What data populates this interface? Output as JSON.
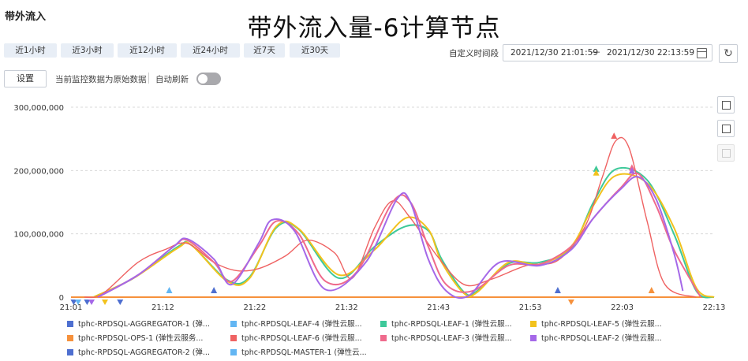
{
  "panel": {
    "title": "带外流入",
    "heading": "带外流入量-6计算节点"
  },
  "toolbar": {
    "ranges": [
      "近1小时",
      "近3小时",
      "近12小时",
      "近24小时",
      "近7天",
      "近30天"
    ],
    "custom_label": "自定义时间段",
    "date_start": "2021/12/30 21:01:59",
    "date_separator": "—",
    "date_end": "2021/12/30 22:13:59",
    "refresh_icon": "refresh-icon",
    "calendar_icon": "calendar-icon"
  },
  "controls": {
    "settings_label": "设置",
    "raw_note": "当前监控数据为原始数据",
    "auto_refresh_label": "自动刷新",
    "auto_refresh_on": false
  },
  "side_icons": [
    "zoom-select-icon",
    "zoom-reset-icon",
    "restore-icon"
  ],
  "chart_data": {
    "type": "line",
    "title": "带外流入量-6计算节点",
    "xlabel": "",
    "ylabel": "",
    "x_ticks": [
      "21:01",
      "21:12",
      "21:22",
      "21:32",
      "21:43",
      "21:53",
      "22:03",
      "22:13"
    ],
    "x_range": [
      0,
      72
    ],
    "y_ticks": [
      "0",
      "100,000,000",
      "200,000,000",
      "300,000,000"
    ],
    "ylim": [
      0,
      300000000
    ],
    "grid": true,
    "legend_position": "bottom",
    "colors": {
      "agg1": "#4e6fd0",
      "leaf4": "#63b6f3",
      "leaf1": "#3ec99a",
      "leaf5": "#f2c21d",
      "ops1": "#f6913c",
      "leaf6": "#ef6262",
      "leaf3": "#ef6a8c",
      "leaf2": "#a568e8",
      "agg2": "#4e6fd0",
      "master1": "#63b6f3"
    },
    "series": [
      {
        "key": "leaf4",
        "name": "tphc-RPDSQL-LEAF-4 (弹性云服...",
        "x": [
          0,
          72
        ],
        "y": [
          0,
          0
        ]
      },
      {
        "key": "master1",
        "name": "tphc-RPDSQL-MASTER-1 (弹性云...",
        "x": [
          0,
          72
        ],
        "y": [
          0,
          0
        ]
      },
      {
        "key": "agg1",
        "name": "tphc-RPDSQL-AGGREGATOR-1 (弹...",
        "x": [
          0,
          72
        ],
        "y": [
          0,
          0
        ]
      },
      {
        "key": "agg2",
        "name": "tphc-RPDSQL-AGGREGATOR-2 (弹...",
        "x": [
          0,
          72
        ],
        "y": [
          0,
          0
        ]
      },
      {
        "key": "ops1",
        "name": "tphc-RPDSQL-OPS-1 (弹性云服务...",
        "x": [
          0,
          72
        ],
        "y": [
          0,
          0
        ]
      },
      {
        "key": "leaf1",
        "name": "tphc-RPDSQL-LEAF-1 (弹性云服...",
        "x": [
          2.5,
          7,
          12,
          13.5,
          17.5,
          20,
          23,
          25.5,
          30,
          34,
          37.5,
          40,
          41.5,
          44,
          45.5,
          49,
          52.5,
          56,
          58.5,
          61,
          64.5,
          67.5,
          70,
          72
        ],
        "y": [
          0,
          30000000,
          80000000,
          82000000,
          27000000,
          32000000,
          110000000,
          107000000,
          30000000,
          80000000,
          112000000,
          105000000,
          60000000,
          8000000,
          10000000,
          53000000,
          55000000,
          77000000,
          150000000,
          202000000,
          185000000,
          100000000,
          10000000,
          0
        ]
      },
      {
        "key": "leaf5",
        "name": "tphc-RPDSQL-LEAF-5 (弹性云服...",
        "x": [
          2.5,
          7,
          12,
          13.5,
          17.5,
          20,
          23,
          25.5,
          30,
          34,
          37.5,
          40,
          41.5,
          44,
          45.5,
          49,
          52.5,
          56,
          58.5,
          61,
          64.5,
          67.5,
          70,
          72
        ],
        "y": [
          0,
          30000000,
          78000000,
          82000000,
          25000000,
          30000000,
          112000000,
          108000000,
          35000000,
          75000000,
          125000000,
          107000000,
          55000000,
          6000000,
          8000000,
          55000000,
          52000000,
          80000000,
          145000000,
          192000000,
          180000000,
          110000000,
          15000000,
          0
        ]
      },
      {
        "key": "leaf6",
        "name": "tphc-RPDSQL-LEAF-6 (弹性云服...",
        "x": [
          1.5,
          3.5,
          7.5,
          10.5,
          13,
          16,
          18.5,
          21,
          24,
          26.5,
          29.5,
          31.5,
          34,
          36,
          38,
          41,
          44,
          47,
          51,
          54.5,
          57.5,
          59.5,
          61,
          62.5,
          64.5,
          66.5,
          70
        ],
        "y": [
          0,
          5000000,
          55000000,
          75000000,
          85000000,
          55000000,
          42000000,
          45000000,
          65000000,
          90000000,
          70000000,
          30000000,
          110000000,
          152000000,
          125000000,
          65000000,
          20000000,
          28000000,
          50000000,
          58000000,
          110000000,
          190000000,
          247000000,
          235000000,
          120000000,
          20000000,
          0
        ]
      },
      {
        "key": "leaf3",
        "name": "tphc-RPDSQL-LEAF-3 (弹性云服...",
        "x": [
          3,
          7.5,
          11.5,
          13,
          16,
          18,
          21,
          23,
          25.5,
          28.5,
          32,
          36,
          38,
          40,
          42,
          45,
          49,
          52.5,
          56,
          58.5,
          61.5,
          63.5,
          65.5,
          67.5,
          70.5
        ],
        "y": [
          0,
          35000000,
          80000000,
          90000000,
          55000000,
          25000000,
          80000000,
          120000000,
          100000000,
          25000000,
          40000000,
          150000000,
          150000000,
          80000000,
          20000000,
          10000000,
          50000000,
          52000000,
          80000000,
          125000000,
          172000000,
          195000000,
          145000000,
          75000000,
          0
        ]
      },
      {
        "key": "leaf2",
        "name": "tphc-RPDSQL-LEAF-2 (弹性云服...",
        "x": [
          3,
          7.5,
          11.5,
          13,
          16,
          18,
          21,
          22.5,
          25,
          28.5,
          33,
          36.5,
          38,
          40,
          42,
          44.5,
          48,
          52.5,
          56,
          58.5,
          61.5,
          63.5,
          65.5,
          67.5,
          68.5
        ],
        "y": [
          0,
          35000000,
          80000000,
          92000000,
          60000000,
          20000000,
          85000000,
          122000000,
          105000000,
          12000000,
          55000000,
          155000000,
          150000000,
          60000000,
          10000000,
          2000000,
          55000000,
          50000000,
          75000000,
          125000000,
          170000000,
          190000000,
          155000000,
          70000000,
          10000000
        ]
      }
    ],
    "markers": [
      {
        "key": "agg1",
        "shape": "down",
        "x": 0.3,
        "y": 0
      },
      {
        "key": "leaf4",
        "shape": "down",
        "x": 0.8,
        "y": 0
      },
      {
        "key": "agg1",
        "shape": "down",
        "x": 1.8,
        "y": 0
      },
      {
        "key": "leaf2",
        "shape": "down",
        "x": 2.3,
        "y": 0
      },
      {
        "key": "leaf5",
        "shape": "down",
        "x": 3.8,
        "y": 0
      },
      {
        "key": "agg1",
        "shape": "down",
        "x": 5.5,
        "y": 0
      },
      {
        "key": "leaf4",
        "shape": "up",
        "x": 11,
        "y": 0
      },
      {
        "key": "agg1",
        "shape": "up",
        "x": 16,
        "y": 0
      },
      {
        "key": "agg1",
        "shape": "up",
        "x": 54.5,
        "y": 0
      },
      {
        "key": "ops1",
        "shape": "down",
        "x": 56,
        "y": 0
      },
      {
        "key": "leaf1",
        "shape": "up",
        "x": 58.8,
        "y": 203000000
      },
      {
        "key": "leaf5",
        "shape": "up",
        "x": 58.8,
        "y": 197000000
      },
      {
        "key": "leaf6",
        "shape": "up",
        "x": 60.8,
        "y": 255000000
      },
      {
        "key": "leaf3",
        "shape": "up",
        "x": 62.8,
        "y": 205000000
      },
      {
        "key": "leaf2",
        "shape": "up",
        "x": 62.8,
        "y": 200000000
      },
      {
        "key": "ops1",
        "shape": "up",
        "x": 65,
        "y": 0
      }
    ],
    "legend": [
      {
        "key": "agg1",
        "label": "tphc-RPDSQL-AGGREGATOR-1 (弹..."
      },
      {
        "key": "leaf4",
        "label": "tphc-RPDSQL-LEAF-4 (弹性云服..."
      },
      {
        "key": "leaf1",
        "label": "tphc-RPDSQL-LEAF-1 (弹性云服..."
      },
      {
        "key": "leaf5",
        "label": "tphc-RPDSQL-LEAF-5 (弹性云服..."
      },
      {
        "key": "ops1",
        "label": "tphc-RPDSQL-OPS-1 (弹性云服务..."
      },
      {
        "key": "leaf6",
        "label": "tphc-RPDSQL-LEAF-6 (弹性云服..."
      },
      {
        "key": "leaf3",
        "label": "tphc-RPDSQL-LEAF-3 (弹性云服..."
      },
      {
        "key": "leaf2",
        "label": "tphc-RPDSQL-LEAF-2 (弹性云服..."
      },
      {
        "key": "agg2",
        "label": "tphc-RPDSQL-AGGREGATOR-2 (弹..."
      },
      {
        "key": "master1",
        "label": "tphc-RPDSQL-MASTER-1 (弹性云..."
      }
    ]
  }
}
